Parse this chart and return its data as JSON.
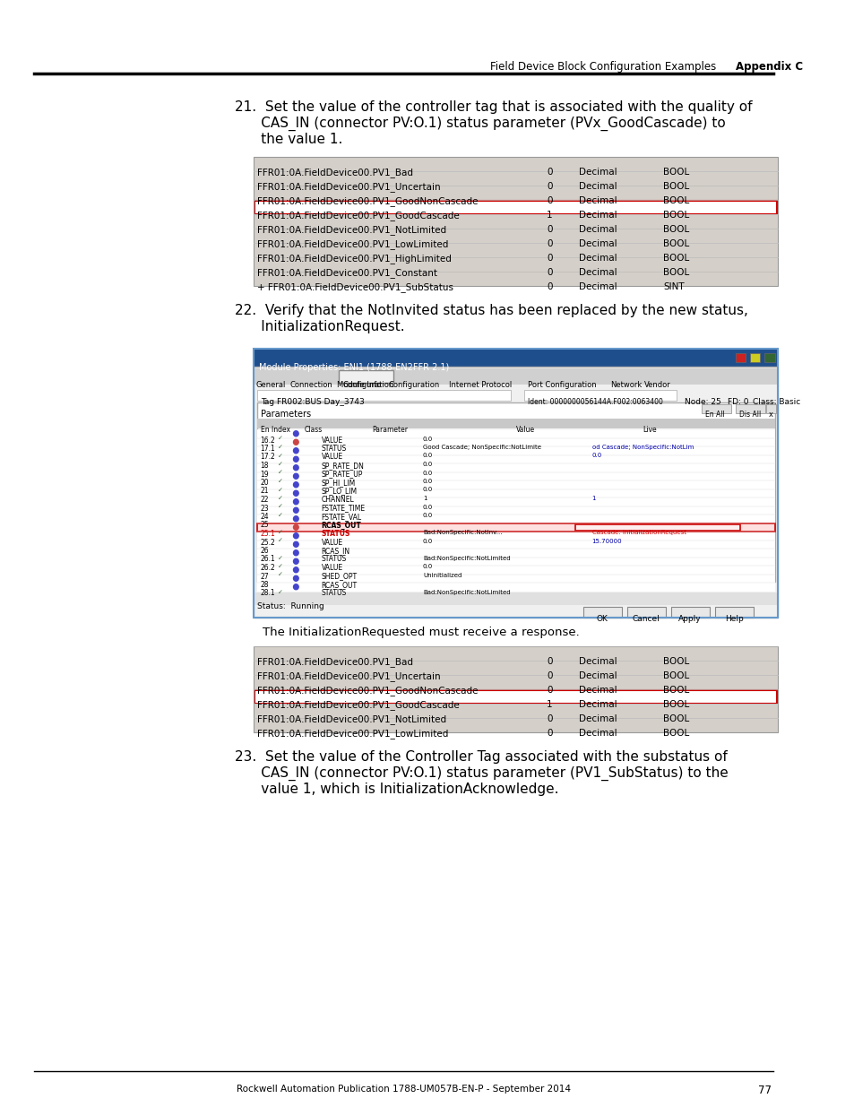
{
  "page_bg": "#ffffff",
  "header_text_left": "Field Device Block Configuration Examples",
  "header_text_right": "Appendix C",
  "footer_text": "Rockwell Automation Publication 1788-UM057B-EN-P - September 2014",
  "footer_page": "77",
  "step21_text": "21. Set the value of the controller tag that is associated with the quality of\n      CAS_IN (connector PV:O.1) status parameter (PVx_GoodCascade) to\n      the value 1.",
  "table1_rows": [
    [
      "FFR01:0A.FieldDevice00.PV1_Bad",
      "0",
      "Decimal",
      "BOOL"
    ],
    [
      "FFR01:0A.FieldDevice00.PV1_Uncertain",
      "0",
      "Decimal",
      "BOOL"
    ],
    [
      "FFR01:0A.FieldDevice00.PV1_GoodNonCascade",
      "0",
      "Decimal",
      "BOOL"
    ],
    [
      "FFR01:0A.FieldDevice00.PV1_GoodCascade",
      "1",
      "Decimal",
      "BOOL"
    ],
    [
      "FFR01:0A.FieldDevice00.PV1_NotLimited",
      "0",
      "Decimal",
      "BOOL"
    ],
    [
      "FFR01:0A.FieldDevice00.PV1_LowLimited",
      "0",
      "Decimal",
      "BOOL"
    ],
    [
      "FFR01:0A.FieldDevice00.PV1_HighLimited",
      "0",
      "Decimal",
      "BOOL"
    ],
    [
      "FFR01:0A.FieldDevice00.PV1_Constant",
      "0",
      "Decimal",
      "BOOL"
    ],
    [
      "+ FFR01:0A.FieldDevice00.PV1_SubStatus",
      "0",
      "Decimal",
      "SINT"
    ]
  ],
  "table1_highlight_row": 3,
  "table1_bg": "#d4cfc9",
  "table1_highlight_bg": "#ffffff",
  "table1_highlight_border": "#cc0000",
  "step22_text": "22. Verify that the NotInvited status has been replaced by the new status,\n      InitializationRequest.",
  "screenshot_caption": "The InitializationRequested must receive a response.",
  "step23_text": "23. Set the value of the Controller Tag associated with the substatus of\n      CAS_IN (connector PV:O.1) status parameter (PV1_SubStatus) to the\n      value 1, which is InitializationAcknowledge.",
  "table2_rows": [
    [
      "FFR01:0A.FieldDevice00.PV1_Bad",
      "0",
      "Decimal",
      "BOOL"
    ],
    [
      "FFR01:0A.FieldDevice00.PV1_Uncertain",
      "0",
      "Decimal",
      "BOOL"
    ],
    [
      "FFR01:0A.FieldDevice00.PV1_GoodNonCascade",
      "0",
      "Decimal",
      "BOOL"
    ],
    [
      "FFR01:0A.FieldDevice00.PV1_GoodCascade",
      "1",
      "Decimal",
      "BOOL"
    ],
    [
      "FFR01:0A.FieldDevice00.PV1_NotLimited",
      "0",
      "Decimal",
      "BOOL"
    ],
    [
      "FFR01:0A.FieldDevice00.PV1_LowLimited",
      "0",
      "Decimal",
      "BOOL"
    ]
  ],
  "table2_highlight_row": 3,
  "table2_bg": "#d4cfc9",
  "table2_highlight_bg": "#ffffff",
  "table2_highlight_border": "#cc0000"
}
